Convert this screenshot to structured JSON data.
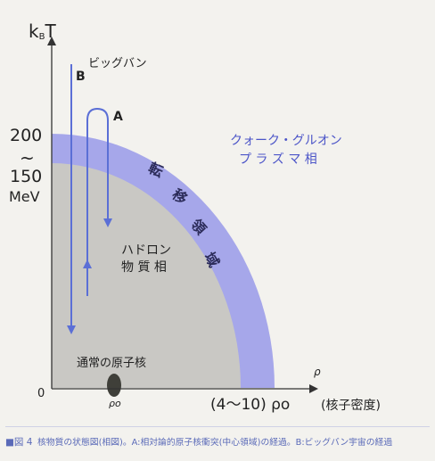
{
  "diagram": {
    "axis": {
      "y_label": "kBT",
      "x_label": "ρ",
      "origin": "0",
      "y_ticks": [
        "200",
        "~",
        "150",
        "MeV"
      ],
      "x_ticks": [
        "ρo",
        "(4〜10) ρo"
      ],
      "x_unit": "(核子密度)"
    },
    "regions": {
      "qgp": [
        "クォーク・グルオン",
        "プ ラ ズ マ 相"
      ],
      "transition": [
        "転",
        "移",
        "領",
        "域"
      ],
      "hadron": [
        "ハドロン",
        "物 質 相"
      ],
      "nucleus": "通常の原子核"
    },
    "paths": {
      "a_label": "A",
      "b_label": "B",
      "bigbang": "ビッグバン"
    },
    "colors": {
      "background": "#f3f2ee",
      "transition_band": "#a6a7ea",
      "hadron_phase": "#c9c8c4",
      "path": "#5b6fd6",
      "qgp_text": "#4c55c8",
      "nucleus": "#3f3f39"
    }
  },
  "caption": {
    "label": "■図 4",
    "text": "核物質の状態図(相図)。A:相対論的原子核衝突(中心領域)の経過。B:ビッグバン宇宙の経過"
  }
}
